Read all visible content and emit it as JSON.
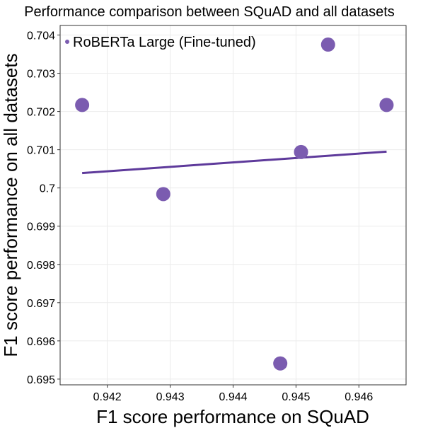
{
  "chart_data": {
    "type": "scatter",
    "title": "Performance comparison between SQuAD and all datasets",
    "xlabel": "F1 score performance on SQuAD",
    "ylabel": "F1 score performance on all datasets",
    "xlim": [
      0.94125,
      0.94675
    ],
    "ylim": [
      0.69485,
      0.70425
    ],
    "xticks": [
      0.942,
      0.943,
      0.944,
      0.945,
      0.946
    ],
    "xtick_labels": [
      "0.942",
      "0.943",
      "0.944",
      "0.945",
      "0.946"
    ],
    "yticks": [
      0.695,
      0.696,
      0.697,
      0.698,
      0.699,
      0.7,
      0.701,
      0.702,
      0.703,
      0.704
    ],
    "ytick_labels": [
      "0.695",
      "0.696",
      "0.697",
      "0.698",
      "0.699",
      "0.7",
      "0.701",
      "0.702",
      "0.703",
      "0.704"
    ],
    "grid": true,
    "legend_position": "top-left",
    "series": [
      {
        "name": "RoBERTa Large (Fine-tuned)",
        "color": "#7b5cb0",
        "points": [
          {
            "x": 0.9416,
            "y": 0.70217
          },
          {
            "x": 0.94289,
            "y": 0.69984
          },
          {
            "x": 0.94475,
            "y": 0.69541
          },
          {
            "x": 0.94508,
            "y": 0.70094
          },
          {
            "x": 0.94551,
            "y": 0.70375
          },
          {
            "x": 0.94644,
            "y": 0.70217
          }
        ]
      }
    ],
    "trend_line": {
      "color": "#5e3a9b",
      "x": [
        0.9416,
        0.94644
      ],
      "y": [
        0.70039,
        0.70095
      ]
    }
  }
}
